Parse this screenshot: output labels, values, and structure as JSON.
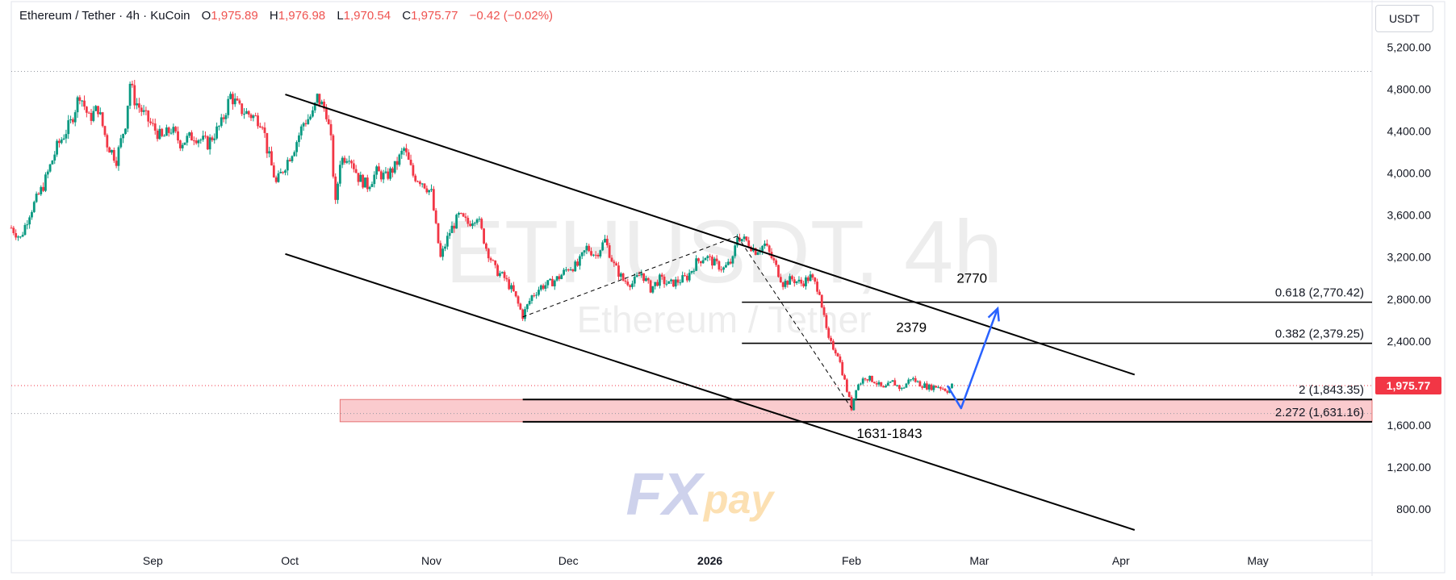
{
  "legend": {
    "symbol": "Ethereum / Tether · 4h · KuCoin",
    "open_label": "O",
    "open": "1,975.89",
    "high_label": "H",
    "high": "1,976.98",
    "low_label": "L",
    "low": "1,970.54",
    "close_label": "C",
    "close": "1,975.77",
    "change": "−0.42 (−0.02%)"
  },
  "currency": "USDT",
  "watermark": {
    "ticker": "ETHUSDT, 4h",
    "name": "Ethereum / Tether",
    "brand_fx": "FX",
    "brand_pay": "pay"
  },
  "colors": {
    "up": "#089981",
    "down": "#f23645",
    "price_badge": "#f23645",
    "arrow": "#2962ff",
    "zone": "#f8b9bd"
  },
  "chart_data": {
    "type": "candlestick",
    "x_ticks": [
      {
        "label": "Sep",
        "t": 5
      },
      {
        "label": "Oct",
        "t": 35
      },
      {
        "label": "Nov",
        "t": 66
      },
      {
        "label": "Dec",
        "t": 96
      },
      {
        "label": "2026",
        "t": 127,
        "bold": true
      },
      {
        "label": "Feb",
        "t": 158
      },
      {
        "label": "Mar",
        "t": 186
      },
      {
        "label": "Apr",
        "t": 217
      },
      {
        "label": "May",
        "t": 247
      }
    ],
    "y_ticks": [
      "5,200.00",
      "4,800.00",
      "4,400.00",
      "4,000.00",
      "3,600.00",
      "3,200.00",
      "2,800.00",
      "2,400.00",
      "1,600.00",
      "1,200.00",
      "800.00"
    ],
    "y_tick_values": [
      5200,
      4800,
      4400,
      4000,
      3600,
      3200,
      2800,
      2400,
      1600,
      1200,
      800
    ],
    "ylim": [
      500,
      5650
    ],
    "xlim": [
      -26,
      272
    ],
    "price_path": [
      [
        -26,
        3480
      ],
      [
        -24,
        3380
      ],
      [
        -22,
        3620
      ],
      [
        -19,
        3880
      ],
      [
        -16,
        4250
      ],
      [
        -13,
        4480
      ],
      [
        -11,
        4760
      ],
      [
        -9,
        4520
      ],
      [
        -7,
        4620
      ],
      [
        -5,
        4280
      ],
      [
        -3,
        4130
      ],
      [
        -1,
        4480
      ],
      [
        0,
        4860
      ],
      [
        1,
        4700
      ],
      [
        3,
        4560
      ],
      [
        5,
        4440
      ],
      [
        7,
        4330
      ],
      [
        9,
        4420
      ],
      [
        11,
        4290
      ],
      [
        14,
        4360
      ],
      [
        17,
        4280
      ],
      [
        20,
        4470
      ],
      [
        22,
        4740
      ],
      [
        24,
        4610
      ],
      [
        27,
        4540
      ],
      [
        29,
        4490
      ],
      [
        30,
        4230
      ],
      [
        32,
        3900
      ],
      [
        34,
        4080
      ],
      [
        36,
        4250
      ],
      [
        38,
        4480
      ],
      [
        40,
        4560
      ],
      [
        41,
        4720
      ],
      [
        43,
        4580
      ],
      [
        44,
        4300
      ],
      [
        45,
        3700
      ],
      [
        46,
        4120
      ],
      [
        48,
        4180
      ],
      [
        50,
        3960
      ],
      [
        52,
        3880
      ],
      [
        54,
        4010
      ],
      [
        56,
        3960
      ],
      [
        58,
        4060
      ],
      [
        60,
        4230
      ],
      [
        62,
        3980
      ],
      [
        64,
        3920
      ],
      [
        66,
        3810
      ],
      [
        67,
        3480
      ],
      [
        68,
        3190
      ],
      [
        70,
        3440
      ],
      [
        72,
        3590
      ],
      [
        74,
        3520
      ],
      [
        76,
        3600
      ],
      [
        78,
        3290
      ],
      [
        80,
        3080
      ],
      [
        82,
        3000
      ],
      [
        84,
        2860
      ],
      [
        86,
        2640
      ],
      [
        88,
        2830
      ],
      [
        90,
        2920
      ],
      [
        92,
        2950
      ],
      [
        94,
        3010
      ],
      [
        96,
        3100
      ],
      [
        98,
        3120
      ],
      [
        100,
        3290
      ],
      [
        102,
        3220
      ],
      [
        104,
        3360
      ],
      [
        106,
        3120
      ],
      [
        108,
        2980
      ],
      [
        110,
        2950
      ],
      [
        112,
        3050
      ],
      [
        114,
        2900
      ],
      [
        116,
        2990
      ],
      [
        118,
        2940
      ],
      [
        120,
        2970
      ],
      [
        122,
        3010
      ],
      [
        124,
        3150
      ],
      [
        126,
        3210
      ],
      [
        128,
        3140
      ],
      [
        130,
        3090
      ],
      [
        132,
        3170
      ],
      [
        133,
        3400
      ],
      [
        135,
        3350
      ],
      [
        137,
        3260
      ],
      [
        139,
        3320
      ],
      [
        141,
        3150
      ],
      [
        143,
        2950
      ],
      [
        145,
        2990
      ],
      [
        147,
        2950
      ],
      [
        149,
        3010
      ],
      [
        151,
        2880
      ],
      [
        152,
        2610
      ],
      [
        153,
        2400
      ],
      [
        155,
        2280
      ],
      [
        157,
        1930
      ],
      [
        158,
        1760
      ],
      [
        159,
        1960
      ],
      [
        161,
        2060
      ],
      [
        163,
        2020
      ],
      [
        165,
        1940
      ],
      [
        167,
        2010
      ],
      [
        169,
        1940
      ],
      [
        171,
        2050
      ],
      [
        173,
        1990
      ],
      [
        175,
        1960
      ],
      [
        177,
        1970
      ],
      [
        179,
        1930
      ],
      [
        180,
        1976
      ]
    ],
    "annotations": {
      "top_dotted_line": 4970,
      "current_price_line": 1975.77,
      "current_price_label": "1,975.77",
      "low_dotted_line": 1710,
      "channel_upper": [
        [
          34,
          4750
        ],
        [
          220,
          2080
        ]
      ],
      "channel_lower": [
        [
          34,
          3230
        ],
        [
          220,
          600
        ]
      ],
      "dashed_up": [
        [
          86,
          2630
        ],
        [
          133,
          3400
        ]
      ],
      "dashed_down": [
        [
          133,
          3400
        ],
        [
          158,
          1760
        ]
      ],
      "fib_levels": [
        {
          "label": "0.618 (2,770.42)",
          "price": 2770.42,
          "x_start": 134
        },
        {
          "label": "0.382 (2,379.25)",
          "price": 2379.25,
          "x_start": 134
        },
        {
          "label": "2 (1,843.35)",
          "price": 1843.35,
          "x_start": 86
        },
        {
          "label": "2.272 (1,631.16)",
          "price": 1631.16,
          "x_start": 86
        }
      ],
      "zone": {
        "x_start": 46,
        "price_top": 1843.35,
        "price_bottom": 1631.16
      },
      "blue_arrow": [
        [
          179,
          1976
        ],
        [
          182,
          1760
        ],
        [
          190,
          2710
        ]
      ],
      "text_2770": "2770",
      "text_2379": "2379",
      "text_zone": "1631-1843"
    }
  }
}
